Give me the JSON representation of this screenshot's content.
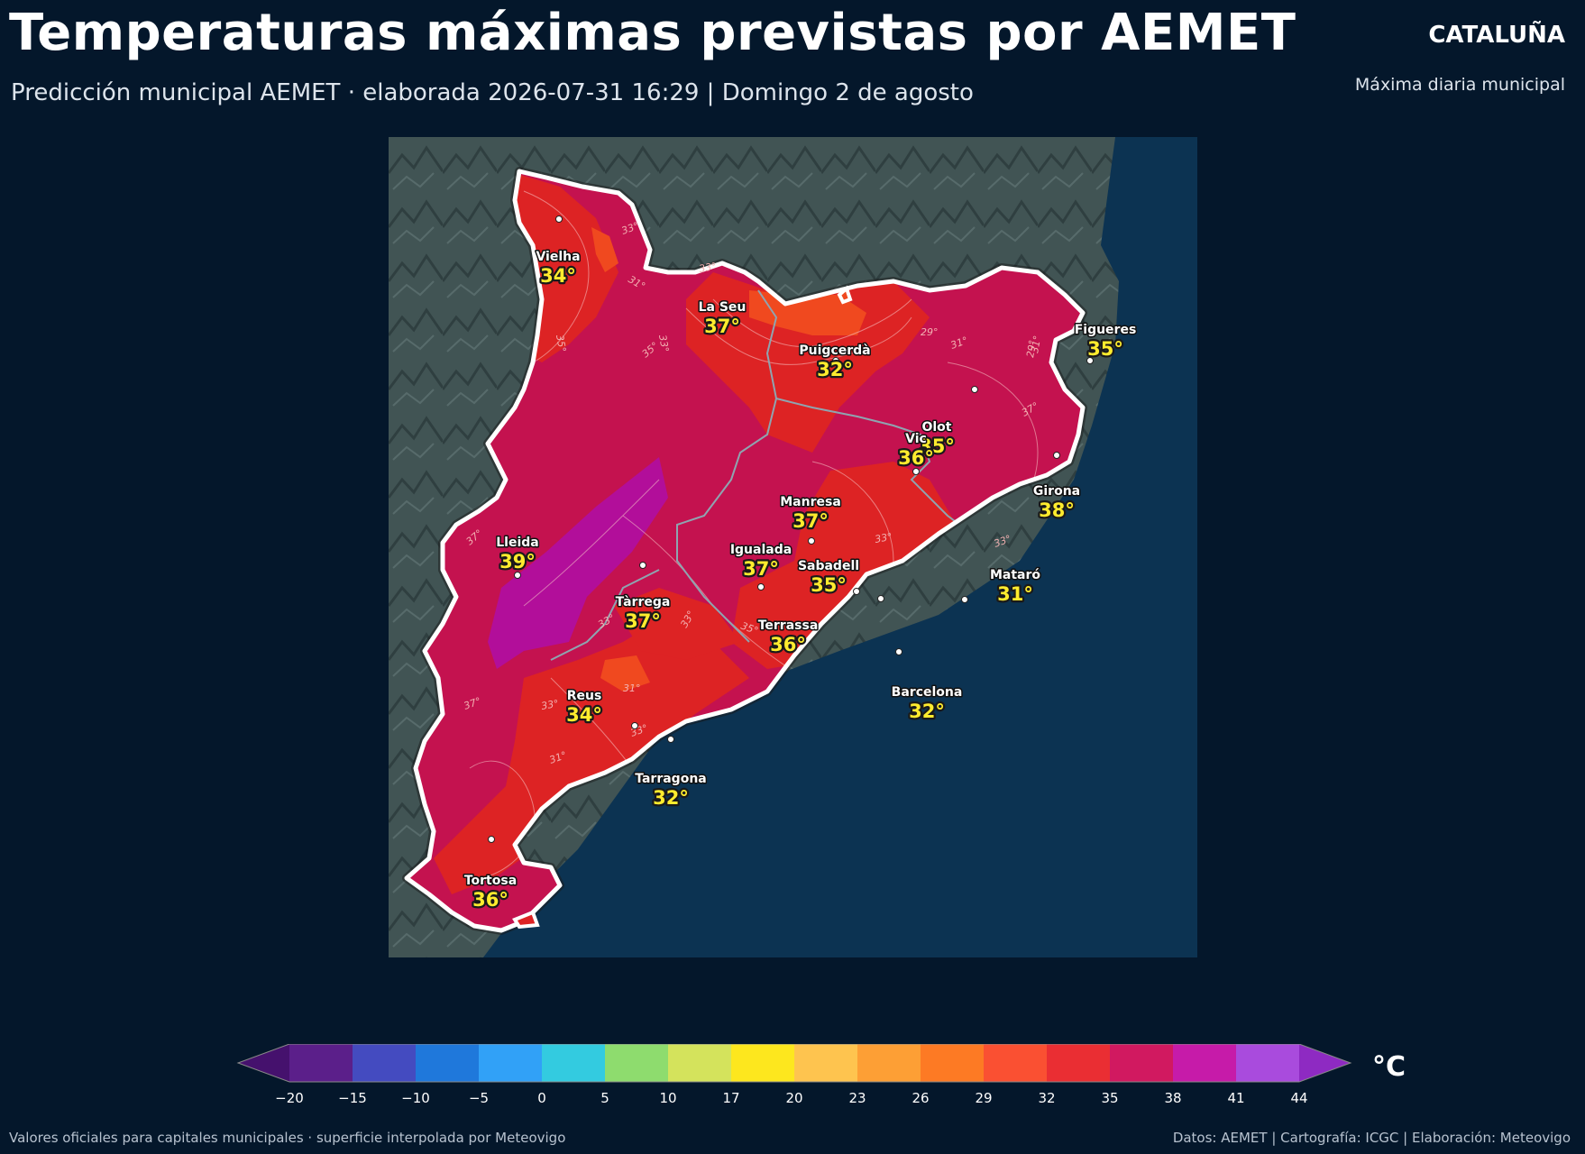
{
  "header": {
    "title": "Temperaturas máximas previstas por AEMET",
    "subtitle": "Predicción municipal AEMET · elaborada 2026-07-31 16:29  |  Domingo 2 de agosto",
    "region": "CATALUÑA",
    "region_sub": "Máxima diaria municipal"
  },
  "map": {
    "region_fill": "#c4124f",
    "sea_color": "#0c3352",
    "land_outside_color": "#3f5353",
    "temperature_zone_colors": {
      "29": "#f0491f",
      "32": "#dd2324",
      "35": "#c4124f",
      "38": "#b20e9a"
    },
    "contour_labels": [
      "33°",
      "31°",
      "33°",
      "35°",
      "35°",
      "33°",
      "29°",
      "31°",
      "29°",
      "31°",
      "37°",
      "33°",
      "37°",
      "33°",
      "33°",
      "31°",
      "37°",
      "33°",
      "33°",
      "31°",
      "33°",
      "35°"
    ],
    "cities": [
      {
        "name": "Vielha",
        "temp": "34°"
      },
      {
        "name": "La Seu",
        "temp": "37°"
      },
      {
        "name": "Puigcerdà",
        "temp": "32°"
      },
      {
        "name": "Figueres",
        "temp": "35°"
      },
      {
        "name": "Olot",
        "temp": "35°"
      },
      {
        "name": "Vic",
        "temp": "36°"
      },
      {
        "name": "Girona",
        "temp": "38°"
      },
      {
        "name": "Manresa",
        "temp": "37°"
      },
      {
        "name": "Lleida",
        "temp": "39°"
      },
      {
        "name": "Igualada",
        "temp": "37°"
      },
      {
        "name": "Sabadell",
        "temp": "35°"
      },
      {
        "name": "Mataró",
        "temp": "31°"
      },
      {
        "name": "Tàrrega",
        "temp": "37°"
      },
      {
        "name": "Terrassa",
        "temp": "36°"
      },
      {
        "name": "Reus",
        "temp": "34°"
      },
      {
        "name": "Barcelona",
        "temp": "32°"
      },
      {
        "name": "Tarragona",
        "temp": "32°"
      },
      {
        "name": "Tortosa",
        "temp": "36°"
      }
    ]
  },
  "colorbar": {
    "ticks": [
      "−20",
      "−15",
      "−10",
      "−5",
      "0",
      "5",
      "10",
      "17",
      "20",
      "23",
      "26",
      "29",
      "32",
      "35",
      "38",
      "41",
      "44"
    ],
    "colors": [
      "#5b1f8a",
      "#444bc0",
      "#1f78db",
      "#31a1f7",
      "#33cbe0",
      "#8edc6e",
      "#d4e35c",
      "#fde71e",
      "#fec44f",
      "#fd9f35",
      "#fd7a24",
      "#fa5032",
      "#ea2e33",
      "#d11960",
      "#c61ba9",
      "#a94bdd"
    ],
    "low_extend_color": "#45116d",
    "high_extend_color": "#8e2ac2",
    "unit": "°C"
  },
  "footer": {
    "left": "Valores oficiales para capitales municipales · superficie interpolada por Meteovigo",
    "right": "Datos: AEMET | Cartografía: ICGC | Elaboración: Meteovigo"
  }
}
